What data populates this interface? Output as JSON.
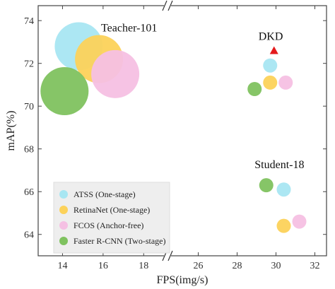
{
  "chart_data": {
    "type": "scatter",
    "subtype": "bubble",
    "xlabel": "FPS(img/s)",
    "ylabel": "mAP(%)",
    "x_axis_broken": true,
    "x_segments": [
      {
        "range": [
          12.8,
          19.0
        ],
        "ticks": [
          14,
          16,
          18
        ]
      },
      {
        "range": [
          24.6,
          32.6
        ],
        "ticks": [
          26,
          28,
          30,
          32
        ]
      }
    ],
    "ylim": [
      63.0,
      74.7
    ],
    "y_ticks": [
      64,
      66,
      68,
      70,
      72,
      74
    ],
    "grid": false,
    "legend_position": "bottom-left",
    "series": [
      {
        "name": "ATSS (One-stage)",
        "color": "#a8e6f2",
        "points": [
          {
            "x": 14.8,
            "y": 72.8,
            "size": 34
          },
          {
            "x": 29.7,
            "y": 71.9,
            "size": 10
          },
          {
            "x": 30.4,
            "y": 66.1,
            "size": 10
          }
        ]
      },
      {
        "name": "RetinaNet (One-stage)",
        "color": "#fcd25a",
        "points": [
          {
            "x": 15.8,
            "y": 72.2,
            "size": 34
          },
          {
            "x": 29.7,
            "y": 71.1,
            "size": 10
          },
          {
            "x": 30.4,
            "y": 64.4,
            "size": 10
          }
        ]
      },
      {
        "name": "FCOS (Anchor-free)",
        "color": "#f5c0e3",
        "points": [
          {
            "x": 16.6,
            "y": 71.5,
            "size": 34
          },
          {
            "x": 30.5,
            "y": 71.1,
            "size": 10
          },
          {
            "x": 31.2,
            "y": 64.6,
            "size": 10
          }
        ]
      },
      {
        "name": "Faster R-CNN (Two-stage)",
        "color": "#7fc25f",
        "points": [
          {
            "x": 14.1,
            "y": 70.7,
            "size": 34
          },
          {
            "x": 28.9,
            "y": 70.8,
            "size": 10
          },
          {
            "x": 29.5,
            "y": 66.3,
            "size": 10
          }
        ]
      }
    ],
    "annotations": [
      {
        "text": "Teacher-101",
        "x": 15.9,
        "y": 73.5
      },
      {
        "text": "DKD",
        "x": 29.1,
        "y": 73.1
      },
      {
        "text": "Student-18",
        "x": 28.9,
        "y": 67.1
      }
    ],
    "marker": {
      "label": "DKD",
      "shape": "triangle",
      "color": "#e41a1c",
      "x": 29.9,
      "y": 72.6
    }
  }
}
